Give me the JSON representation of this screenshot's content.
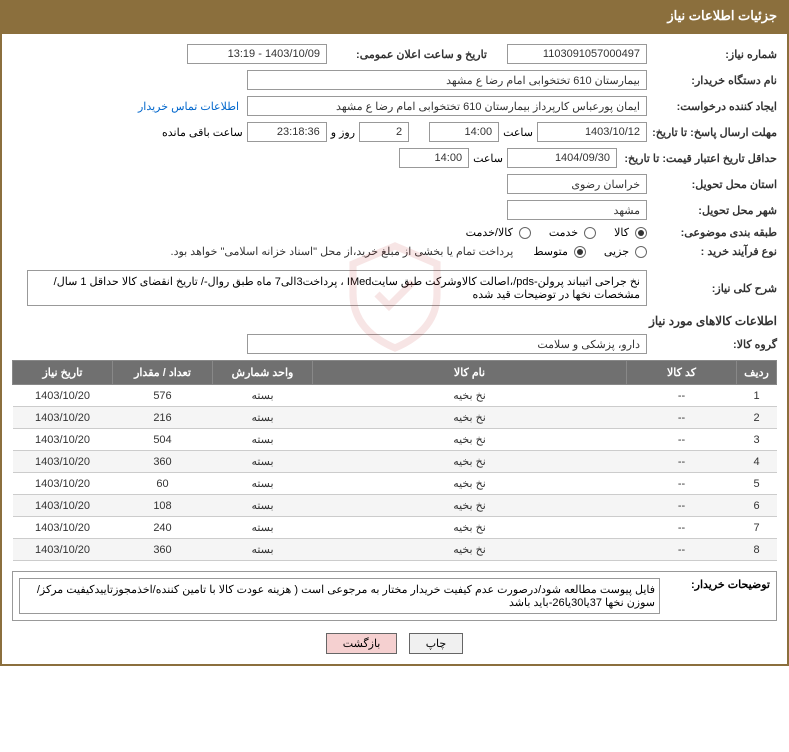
{
  "header": {
    "title": "جزئیات اطلاعات نیاز"
  },
  "fields": {
    "need_no_label": "شماره نیاز:",
    "need_no": "1103091057000497",
    "announce_label": "تاریخ و ساعت اعلان عمومی:",
    "announce": "1403/10/09 - 13:19",
    "buyer_org_label": "نام دستگاه خریدار:",
    "buyer_org": "بیمارستان 610 تختخوابی امام رضا ع  مشهد",
    "requester_label": "ایجاد کننده درخواست:",
    "requester": "ایمان پورعباس کارپرداز بیمارستان 610 تختخوابی امام رضا ع  مشهد",
    "contact_link": "اطلاعات تماس خریدار",
    "deadline_label": "مهلت ارسال پاسخ: تا تاریخ:",
    "deadline_date": "1403/10/12",
    "time_label": "ساعت",
    "deadline_time": "14:00",
    "days": "2",
    "days_label": "روز و",
    "countdown": "23:18:36",
    "remain_label": "ساعت باقی مانده",
    "validity_label": "حداقل تاریخ اعتبار قیمت: تا تاریخ:",
    "validity_date": "1404/09/30",
    "validity_time": "14:00",
    "province_label": "استان محل تحویل:",
    "province": "خراسان رضوی",
    "city_label": "شهر محل تحویل:",
    "city": "مشهد",
    "category_label": "طبقه بندی موضوعی:",
    "cat_goods": "کالا",
    "cat_service": "خدمت",
    "cat_both": "کالا/خدمت",
    "process_label": "نوع فرآیند خرید :",
    "proc_small": "جزیی",
    "proc_medium": "متوسط",
    "payment_note": "پرداخت تمام یا بخشی از مبلغ خرید،از محل \"اسناد خزانه اسلامی\" خواهد بود.",
    "desc_label": "شرح کلی نیاز:",
    "desc": "نخ جراحی اتیباند پرولن-pds/،اصالت کالاوشرکت طبق سایتIMed ، پرداخت3الی7 ماه طبق روال-/ تاریخ انقضای کالا حداقل 1 سال/مشخصات نخها در توضیحات قید شده",
    "items_title": "اطلاعات کالاهای مورد نیاز",
    "group_label": "گروه کالا:",
    "group": "دارو، پزشکی و سلامت"
  },
  "table": {
    "headers": [
      "ردیف",
      "کد کالا",
      "نام کالا",
      "واحد شمارش",
      "تعداد / مقدار",
      "تاریخ نیاز"
    ],
    "rows": [
      [
        "1",
        "--",
        "نخ بخیه",
        "بسته",
        "576",
        "1403/10/20"
      ],
      [
        "2",
        "--",
        "نخ بخیه",
        "بسته",
        "216",
        "1403/10/20"
      ],
      [
        "3",
        "--",
        "نخ بخیه",
        "بسته",
        "504",
        "1403/10/20"
      ],
      [
        "4",
        "--",
        "نخ بخیه",
        "بسته",
        "360",
        "1403/10/20"
      ],
      [
        "5",
        "--",
        "نخ بخیه",
        "بسته",
        "60",
        "1403/10/20"
      ],
      [
        "6",
        "--",
        "نخ بخیه",
        "بسته",
        "108",
        "1403/10/20"
      ],
      [
        "7",
        "--",
        "نخ بخیه",
        "بسته",
        "240",
        "1403/10/20"
      ],
      [
        "8",
        "--",
        "نخ بخیه",
        "بسته",
        "360",
        "1403/10/20"
      ]
    ]
  },
  "footer": {
    "label": "توضیحات خریدار:",
    "text": "فایل پیوست مطالعه شود/درصورت عدم کیفیت خریدار مختار به مرجوعی است ( هزینه عودت کالا با تامین کننده/اخذمجوزتاییدکیفیت مرکز/سوزن نخها 37یا30یا26-باید باشد"
  },
  "buttons": {
    "print": "چاپ",
    "back": "بازگشت"
  },
  "colors": {
    "header_bg": "#8b6f3d",
    "th_bg": "#707070"
  }
}
